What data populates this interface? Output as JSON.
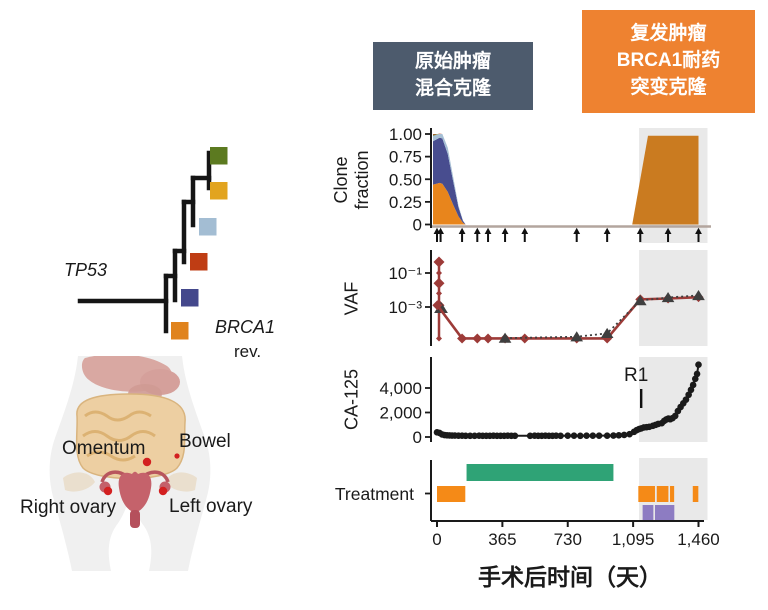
{
  "figure": {
    "boxes": {
      "primary": {
        "lines": [
          "原始肿瘤",
          "混合克隆"
        ],
        "bg": "#4d5b6d"
      },
      "recurrent": {
        "lines": [
          "复发肿瘤",
          "BRCA1耐药",
          "突变克隆"
        ],
        "bg": "#ee8230"
      }
    },
    "tree": {
      "trunk_label": "TP53",
      "branch_label": "BRCA1",
      "branch_label_suffix": "rev.",
      "clones": [
        {
          "id": "clone-orange",
          "color": "#e0831d"
        },
        {
          "id": "clone-navy",
          "color": "#44488c"
        },
        {
          "id": "clone-red",
          "color": "#bf3d14"
        },
        {
          "id": "clone-light-blue",
          "color": "#a3bdd3"
        },
        {
          "id": "clone-gold",
          "color": "#e2a41f"
        },
        {
          "id": "clone-green",
          "color": "#5c7a20"
        }
      ]
    },
    "anatomy": {
      "omentum": "Omentum",
      "bowel": "Bowel",
      "right_ovary": "Right ovary",
      "left_ovary": "Left ovary"
    }
  },
  "x_axis": {
    "label": "手术后时间（天）",
    "tick_labels": [
      "0",
      "365",
      "730",
      "1,095",
      "1,460"
    ],
    "tick_days": [
      0,
      365,
      730,
      1095,
      1460
    ],
    "domain_days": [
      0,
      1460
    ]
  },
  "highlight": {
    "days": [
      1128,
      1510
    ],
    "color": "#e9e9e9"
  },
  "chart_data": [
    {
      "type": "area",
      "panel": "clone-fraction",
      "ylabel": "Clone fraction",
      "ylabel_lines": [
        "Clone",
        "fraction"
      ],
      "ylim": [
        0,
        1
      ],
      "yticks": [
        {
          "label": "1.00",
          "v": 1
        },
        {
          "label": "0.75",
          "v": 0.75
        },
        {
          "label": "0.50",
          "v": 0.5
        },
        {
          "label": "0.25",
          "v": 0.25
        },
        {
          "label": "0",
          "v": 0
        }
      ],
      "x_days": [
        0,
        15,
        30,
        60,
        90,
        120,
        145,
        160
      ],
      "stack": [
        {
          "name": "orange-clone",
          "color": "#e8851c",
          "values": [
            0.44,
            0.46,
            0.45,
            0.36,
            0.22,
            0.09,
            0.02,
            0
          ]
        },
        {
          "name": "navy-clone",
          "color": "#484d8f",
          "values": [
            0.48,
            0.5,
            0.5,
            0.42,
            0.26,
            0.1,
            0.02,
            0
          ]
        },
        {
          "name": "lightblue-clone",
          "color": "#a6bfd4",
          "values": [
            0.06,
            0.04,
            0.05,
            0.07,
            0.05,
            0.02,
            0.005,
            0
          ]
        },
        {
          "name": "green-clone",
          "color": "#5c7a20",
          "values": [
            0.012,
            0.004,
            0,
            0,
            0,
            0,
            0,
            0
          ]
        },
        {
          "name": "red-clone",
          "color": "#c23b16",
          "values": [
            0.008,
            0.002,
            0,
            0,
            0,
            0,
            0,
            0
          ]
        }
      ],
      "recurrent": {
        "name": "brca1-resistant-clone",
        "color": "#ca7b20",
        "points_days": [
          1090,
          1178,
          1460,
          1460
        ],
        "points_frac": [
          0,
          0.98,
          0.98,
          0
        ]
      },
      "sample_arrow_days": [
        0,
        20,
        140,
        225,
        285,
        380,
        490,
        780,
        950,
        1135,
        1290,
        1460
      ]
    },
    {
      "type": "line",
      "panel": "vaf",
      "ylabel": "VAF",
      "yscale": "log",
      "yticks": [
        {
          "label": "10⁻¹",
          "log10": -1
        },
        {
          "label": "10⁻³",
          "log10": -3
        }
      ],
      "series": [
        {
          "name": "vaf-diamond",
          "color": "#9d3b38",
          "marker": "diamond",
          "x_days": [
            2,
            140,
            225,
            285,
            380,
            490,
            780,
            950,
            1135,
            1290,
            1460
          ],
          "log10": [
            -2.9,
            -4.85,
            -4.85,
            -4.85,
            -4.85,
            -4.85,
            -4.85,
            -4.85,
            -2.55,
            -2.5,
            -2.42
          ]
        },
        {
          "name": "vaf-triangle",
          "color": "#3f3f3f",
          "marker": "triangle",
          "dotted": true,
          "x_days": [
            380,
            780,
            950,
            1135,
            1290,
            1460
          ],
          "log10": [
            -4.83,
            -4.75,
            -4.55,
            -2.62,
            -2.44,
            -2.32
          ]
        }
      ],
      "day0_column": {
        "log10_points": [
          -0.35,
          -1.0,
          -1.6,
          -2.2,
          -2.9,
          -4.85
        ],
        "triangle_log10": -3.05
      }
    },
    {
      "type": "scatter",
      "panel": "ca-125",
      "ylabel": "CA-125",
      "yticks": [
        {
          "label": "4,000",
          "v": 4000
        },
        {
          "label": "2,000",
          "v": 2000
        },
        {
          "label": "0",
          "v": 0
        }
      ],
      "points": [
        [
          0,
          380
        ],
        [
          14,
          330
        ],
        [
          28,
          210
        ],
        [
          42,
          160
        ],
        [
          56,
          140
        ],
        [
          70,
          130
        ],
        [
          84,
          120
        ],
        [
          100,
          115
        ],
        [
          120,
          110
        ],
        [
          140,
          105
        ],
        [
          160,
          100
        ],
        [
          185,
          100
        ],
        [
          210,
          100
        ],
        [
          235,
          105
        ],
        [
          255,
          100
        ],
        [
          275,
          100
        ],
        [
          295,
          100
        ],
        [
          315,
          105
        ],
        [
          335,
          100
        ],
        [
          355,
          100
        ],
        [
          375,
          100
        ],
        [
          395,
          105
        ],
        [
          415,
          100
        ],
        [
          435,
          100
        ],
        [
          520,
          100
        ],
        [
          545,
          105
        ],
        [
          565,
          100
        ],
        [
          585,
          100
        ],
        [
          605,
          105
        ],
        [
          625,
          100
        ],
        [
          645,
          100
        ],
        [
          665,
          105
        ],
        [
          690,
          100
        ],
        [
          730,
          105
        ],
        [
          765,
          110
        ],
        [
          800,
          100
        ],
        [
          835,
          110
        ],
        [
          870,
          105
        ],
        [
          905,
          110
        ],
        [
          950,
          110
        ],
        [
          985,
          120
        ],
        [
          1015,
          135
        ],
        [
          1045,
          165
        ],
        [
          1075,
          230
        ],
        [
          1100,
          420
        ],
        [
          1115,
          560
        ],
        [
          1128,
          650
        ],
        [
          1140,
          700
        ],
        [
          1155,
          780
        ],
        [
          1170,
          800
        ],
        [
          1185,
          830
        ],
        [
          1205,
          910
        ],
        [
          1220,
          990
        ],
        [
          1235,
          1070
        ],
        [
          1255,
          1130
        ],
        [
          1268,
          1310
        ],
        [
          1280,
          1430
        ],
        [
          1292,
          1510
        ],
        [
          1302,
          1450
        ],
        [
          1315,
          1540
        ],
        [
          1330,
          1720
        ],
        [
          1345,
          2120
        ],
        [
          1360,
          2450
        ],
        [
          1375,
          2750
        ],
        [
          1390,
          3050
        ],
        [
          1405,
          3450
        ],
        [
          1418,
          3850
        ],
        [
          1430,
          4250
        ],
        [
          1442,
          4750
        ],
        [
          1452,
          5150
        ],
        [
          1460,
          5900
        ]
      ],
      "annotation": {
        "label": "R1",
        "text_day": 1080,
        "line_day": 1140
      }
    },
    {
      "type": "timeline",
      "panel": "treatment",
      "label": "Treatment",
      "lanes": [
        {
          "name": "chemo-green",
          "color": "#2fa376",
          "row": 0,
          "segments_days": [
            [
              165,
              985
            ]
          ]
        },
        {
          "name": "chemo-orange",
          "color": "#f58a17",
          "row": 1,
          "segments_days": [
            [
              0,
              158
            ],
            [
              1124,
              1217
            ],
            [
              1227,
              1292
            ],
            [
              1301,
              1324
            ],
            [
              1428,
              1459
            ]
          ]
        },
        {
          "name": "therapy-purple",
          "color": "#8d7cc2",
          "row": 2,
          "segments_days": [
            [
              1148,
              1208
            ],
            [
              1217,
              1325
            ]
          ]
        }
      ]
    }
  ]
}
